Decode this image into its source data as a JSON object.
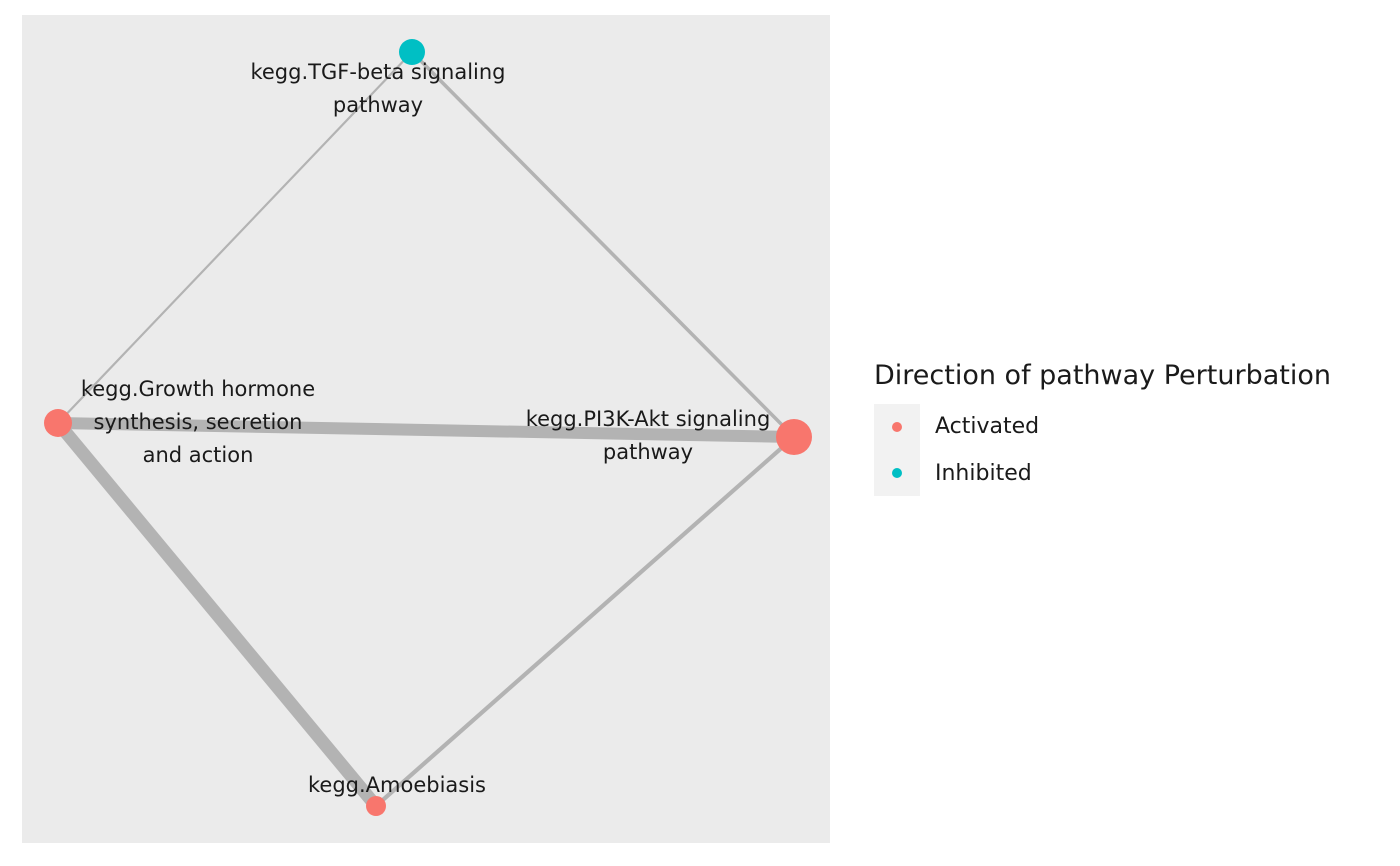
{
  "legend": {
    "title": "Direction of pathway Perturbation",
    "items": [
      {
        "label": "Activated",
        "color": "#F8766D"
      },
      {
        "label": "Inhibited",
        "color": "#00BFC4"
      }
    ]
  },
  "colors": {
    "panel": "#ebebeb",
    "edge": "#b3b3b3",
    "text": "#1a1a1a"
  },
  "nodes": [
    {
      "id": "tgf",
      "label_lines": [
        "kegg.TGF-beta signaling",
        "pathway"
      ],
      "direction": "Inhibited"
    },
    {
      "id": "gh",
      "label_lines": [
        "kegg.Growth hormone",
        "synthesis, secretion",
        "and action"
      ],
      "direction": "Activated"
    },
    {
      "id": "pi3k",
      "label_lines": [
        "kegg.PI3K-Akt signaling",
        "pathway"
      ],
      "direction": "Activated"
    },
    {
      "id": "amoeb",
      "label_lines": [
        "kegg.Amoebiasis"
      ],
      "direction": "Activated"
    }
  ],
  "edges": [
    {
      "source": "gh",
      "target": "tgf"
    },
    {
      "source": "tgf",
      "target": "pi3k"
    },
    {
      "source": "gh",
      "target": "pi3k"
    },
    {
      "source": "gh",
      "target": "amoeb"
    },
    {
      "source": "amoeb",
      "target": "pi3k"
    }
  ]
}
